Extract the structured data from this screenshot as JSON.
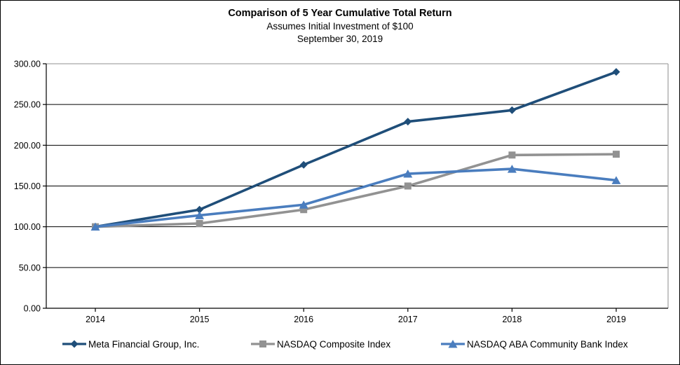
{
  "title_block": {
    "line1": "Comparison of 5 Year Cumulative Total Return",
    "line2": "Assumes Initial Investment of $100",
    "line3": "September 30, 2019"
  },
  "chart_data": {
    "type": "line",
    "title": "Comparison of 5 Year Cumulative Total Return",
    "subtitle": "Assumes Initial Investment of $100",
    "date_label": "September 30, 2019",
    "x": [
      "2014",
      "2015",
      "2016",
      "2017",
      "2018",
      "2019"
    ],
    "series": [
      {
        "name": "Meta Financial Group, Inc.",
        "marker": "diamond",
        "color": "#1F4E79",
        "values": [
          100,
          121,
          176,
          229,
          243,
          290
        ]
      },
      {
        "name": "NASDAQ Composite Index",
        "marker": "square",
        "color": "#929292",
        "values": [
          100,
          104,
          121,
          150,
          188,
          189
        ]
      },
      {
        "name": "NASDAQ ABA Community Bank Index",
        "marker": "triangle",
        "color": "#4A7DBE",
        "values": [
          100,
          114,
          127,
          165,
          171,
          157
        ]
      }
    ],
    "ylim": [
      0,
      300
    ],
    "yticks": [
      0,
      50,
      100,
      150,
      200,
      250,
      300
    ],
    "yticklabels": [
      "0.00",
      "50.00",
      "100.00",
      "150.00",
      "200.00",
      "250.00",
      "300.00"
    ],
    "grid": "horizontal",
    "gridline_color": "#000000",
    "plot_border_color": "#A6A6A6",
    "legend_position": "bottom"
  }
}
